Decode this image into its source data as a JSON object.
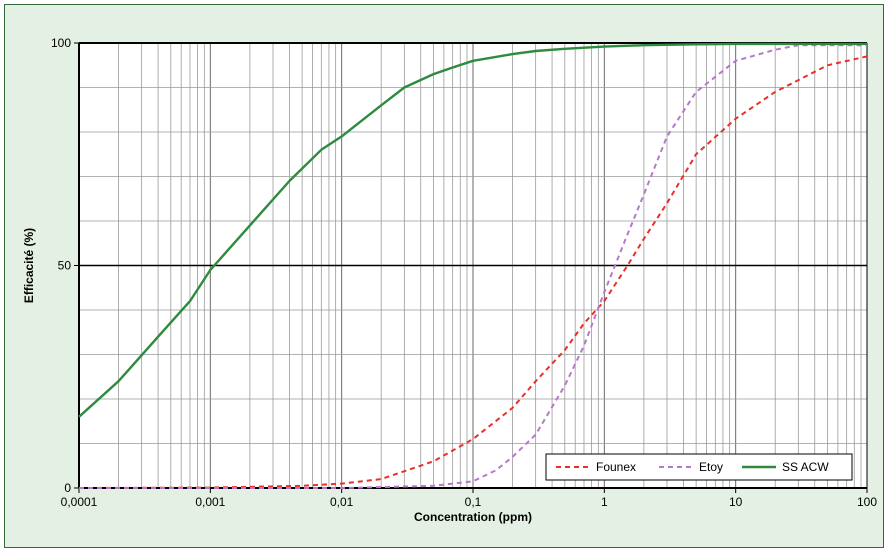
{
  "chart_data": {
    "type": "line",
    "xscale": "log",
    "xlabel": "Concentration (ppm)",
    "ylabel": "Efficacité (%)",
    "xlim": [
      0.0001,
      100
    ],
    "ylim": [
      0,
      100
    ],
    "x_tick_labels": [
      "0,0001",
      "0,001",
      "0,01",
      "0,1",
      "1",
      "10",
      "100"
    ],
    "y_tick_labels": [
      "0",
      "50",
      "100"
    ],
    "grid": true,
    "legend_position": "bottom-right",
    "series": [
      {
        "name": "Founex",
        "color": "#e8302a",
        "style": "dashed",
        "x": [
          0.0001,
          0.001,
          0.005,
          0.01,
          0.02,
          0.05,
          0.1,
          0.2,
          0.3,
          0.5,
          0.7,
          1,
          1.5,
          2,
          3,
          5,
          10,
          20,
          50,
          100
        ],
        "y": [
          0,
          0.1,
          0.5,
          1,
          2,
          6,
          11,
          18,
          24,
          31,
          37,
          42,
          50,
          56,
          64,
          75,
          83,
          89,
          95,
          97
        ]
      },
      {
        "name": "Etoy",
        "color": "#b678c8",
        "style": "dashed",
        "x": [
          0.0001,
          0.01,
          0.05,
          0.1,
          0.15,
          0.2,
          0.3,
          0.5,
          0.7,
          1,
          1.5,
          2,
          3,
          5,
          10,
          20,
          30,
          100
        ],
        "y": [
          0,
          0,
          0.5,
          1.5,
          4,
          7,
          12,
          23,
          32,
          44,
          57,
          66,
          79,
          89,
          96,
          98.5,
          99.5,
          99.5
        ]
      },
      {
        "name": "SS ACW",
        "color": "#2e8b3e",
        "style": "solid",
        "x": [
          0.0001,
          0.0002,
          0.0004,
          0.0007,
          0.001,
          0.002,
          0.004,
          0.007,
          0.01,
          0.02,
          0.03,
          0.05,
          0.07,
          0.1,
          0.2,
          0.3,
          0.5,
          1,
          2,
          5,
          10,
          100
        ],
        "y": [
          16,
          24,
          34,
          42,
          49,
          59,
          69,
          76,
          79,
          86,
          90,
          93,
          94.5,
          96,
          97.5,
          98.2,
          98.7,
          99.2,
          99.5,
          99.7,
          99.8,
          99.8
        ]
      }
    ]
  }
}
